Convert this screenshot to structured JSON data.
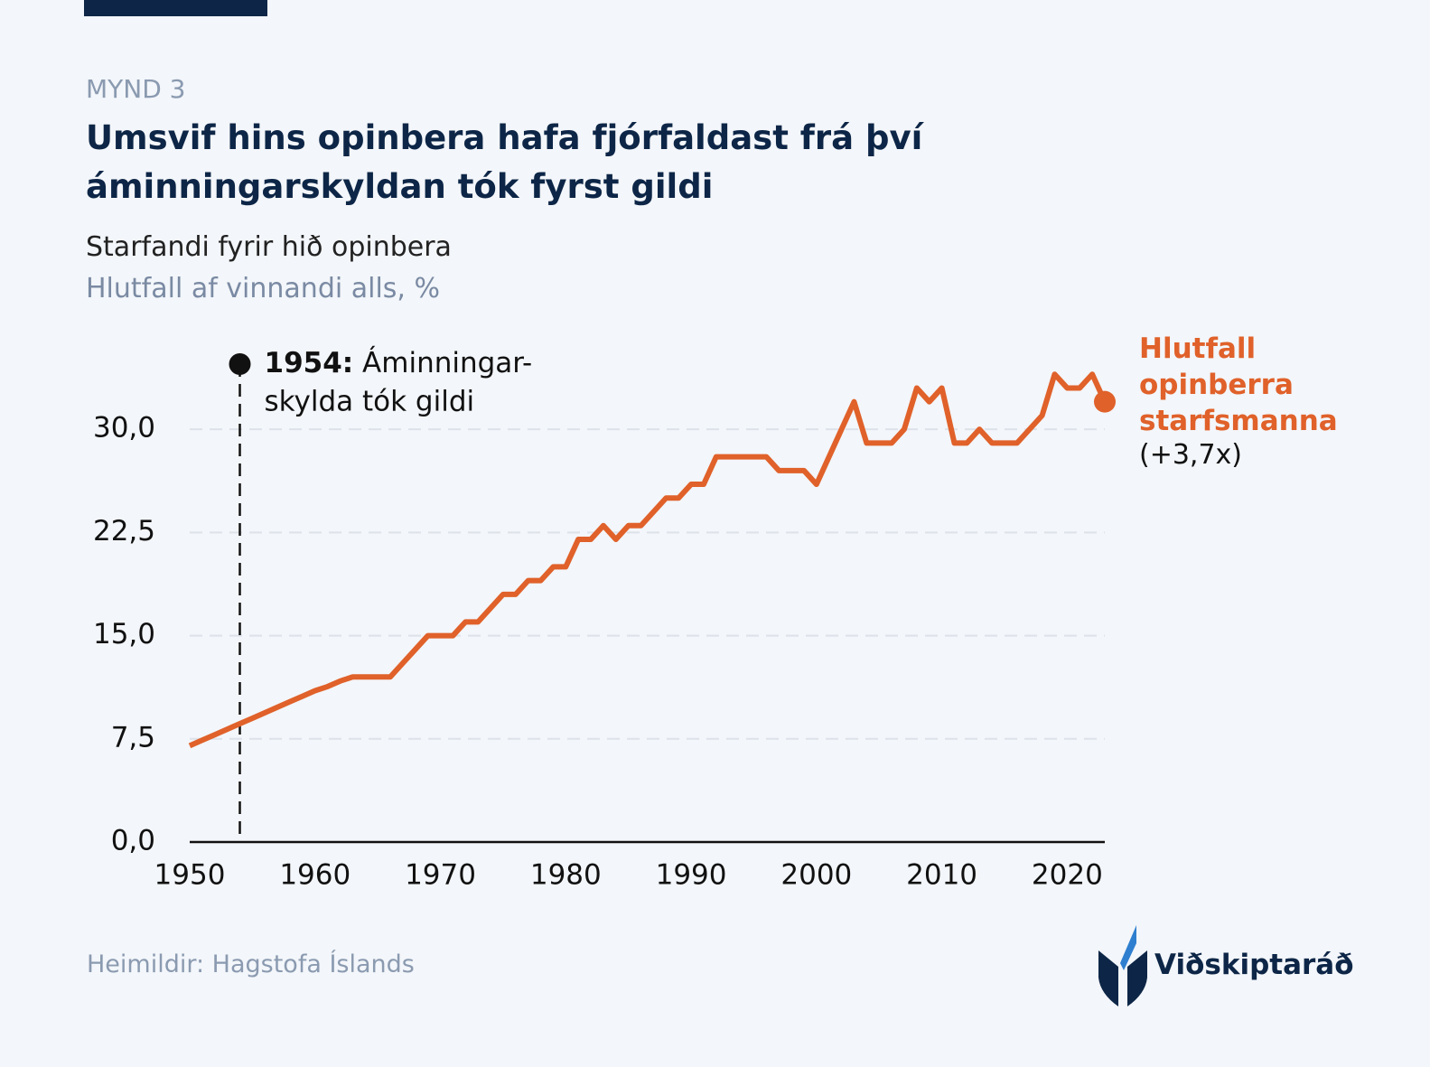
{
  "header": {
    "kicker": "MYND 3",
    "title": "Umsvif hins opinbera hafa fjórfaldast frá því áminningarskyldan tók fyrst gildi",
    "subtitle": "Starfandi fyrir hið opinbera",
    "unit": "Hlutfall af vinnandi alls, %"
  },
  "chart_data": {
    "type": "line",
    "x": [
      1950,
      1951,
      1952,
      1953,
      1954,
      1955,
      1956,
      1957,
      1958,
      1959,
      1960,
      1961,
      1962,
      1963,
      1964,
      1965,
      1966,
      1967,
      1968,
      1969,
      1970,
      1971,
      1972,
      1973,
      1974,
      1975,
      1976,
      1977,
      1978,
      1979,
      1980,
      1981,
      1982,
      1983,
      1984,
      1985,
      1986,
      1987,
      1988,
      1989,
      1990,
      1991,
      1992,
      1993,
      1994,
      1995,
      1996,
      1997,
      1998,
      1999,
      2000,
      2001,
      2002,
      2003,
      2004,
      2005,
      2006,
      2007,
      2008,
      2009,
      2010,
      2011,
      2012,
      2013,
      2014,
      2015,
      2016,
      2017,
      2018,
      2019,
      2020,
      2021,
      2022,
      2023
    ],
    "series": [
      {
        "name": "Hlutfall opinberra starfsmanna",
        "color": "#e0612a",
        "values": [
          7.0,
          7.4,
          7.8,
          8.2,
          8.6,
          9.0,
          9.4,
          9.8,
          10.2,
          10.6,
          11.0,
          11.3,
          11.7,
          12,
          12,
          12,
          12,
          13,
          14,
          15,
          15,
          15,
          16,
          16,
          17,
          18,
          18,
          19,
          19,
          20,
          20,
          22,
          22,
          23,
          22,
          23,
          23,
          24,
          25,
          25,
          26,
          26,
          28,
          28,
          28,
          28,
          28,
          27,
          27,
          27,
          26,
          28,
          30,
          32,
          29,
          29,
          29,
          30,
          33,
          32,
          33,
          29,
          29,
          30,
          29,
          29,
          29,
          30,
          31,
          34,
          33,
          33,
          34,
          32
        ]
      }
    ],
    "end_label": "(+3,7x)",
    "xlim": [
      1950,
      2023
    ],
    "xticks": [
      1950,
      1960,
      1970,
      1980,
      1990,
      2000,
      2010,
      2020
    ],
    "ylim": [
      0,
      35
    ],
    "yticks": [
      {
        "value": 0,
        "label": "0,0"
      },
      {
        "value": 7.5,
        "label": "7,5"
      },
      {
        "value": 15,
        "label": "15,0"
      },
      {
        "value": 22.5,
        "label": "22,5"
      },
      {
        "value": 30,
        "label": "30,0"
      }
    ],
    "grid": true,
    "annotation": {
      "x": 1954,
      "label": "1954:",
      "text": [
        "Áminningar-",
        "skylda tók gildi"
      ]
    }
  },
  "footer": {
    "source": "Heimildir: Hagstofa Íslands",
    "logo": "Viðskiptaráð"
  }
}
